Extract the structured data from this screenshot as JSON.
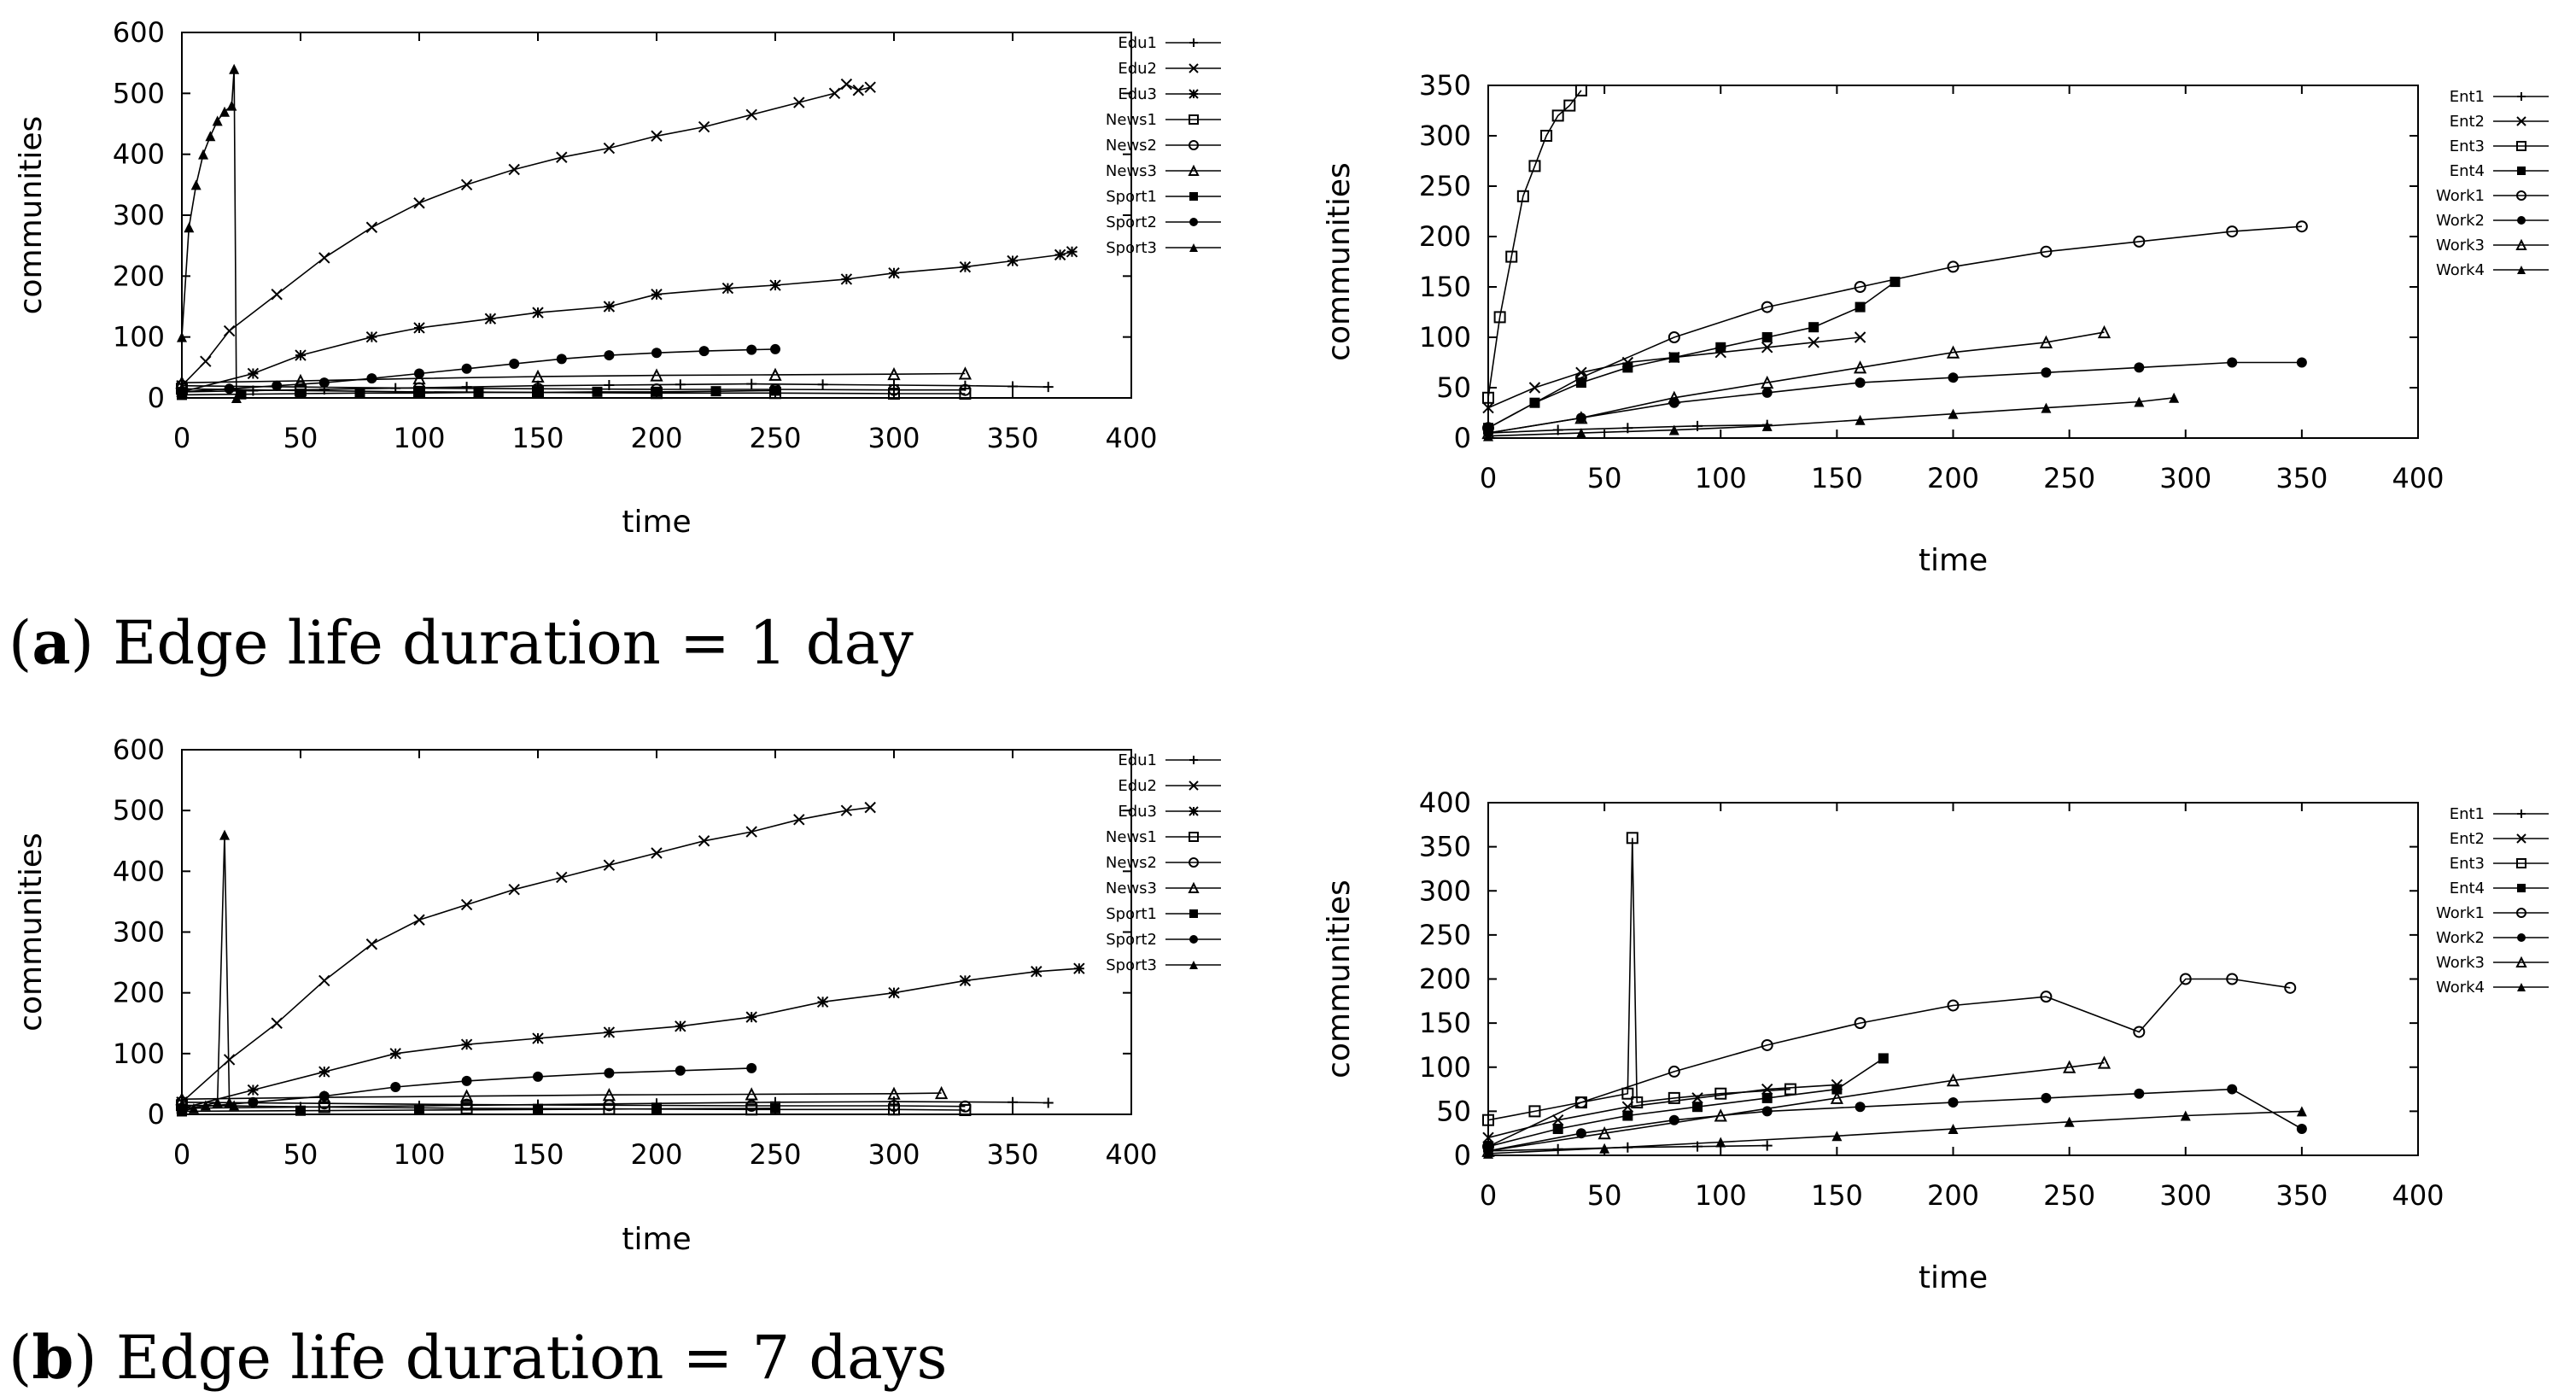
{
  "captions": [
    {
      "letter": "a",
      "text": "Edge life duration = 1 day"
    },
    {
      "letter": "b",
      "text": "Edge life duration = 7 days"
    }
  ],
  "chart_data": [
    {
      "id": "a-left",
      "type": "line",
      "title": "",
      "xlabel": "time",
      "ylabel": "communities",
      "xlim": [
        0,
        400
      ],
      "ylim": [
        0,
        600
      ],
      "xticks": [
        0,
        50,
        100,
        150,
        200,
        250,
        300,
        350,
        400
      ],
      "yticks": [
        0,
        100,
        200,
        300,
        400,
        500,
        600
      ],
      "legend_position": "right",
      "grid": false,
      "series": [
        {
          "name": "Edu1",
          "marker": "plus",
          "x": [
            0,
            30,
            60,
            90,
            120,
            150,
            180,
            210,
            240,
            270,
            300,
            330,
            350,
            365
          ],
          "y": [
            10,
            12,
            14,
            16,
            18,
            20,
            21,
            22,
            23,
            22,
            21,
            20,
            19,
            18
          ]
        },
        {
          "name": "Edu2",
          "marker": "x",
          "x": [
            0,
            10,
            20,
            40,
            60,
            80,
            100,
            120,
            140,
            160,
            180,
            200,
            220,
            240,
            260,
            275,
            280,
            285,
            290
          ],
          "y": [
            20,
            60,
            110,
            170,
            230,
            280,
            320,
            350,
            375,
            395,
            410,
            430,
            445,
            465,
            485,
            500,
            515,
            505,
            510
          ]
        },
        {
          "name": "Edu3",
          "marker": "asterisk",
          "x": [
            0,
            30,
            50,
            80,
            100,
            130,
            150,
            180,
            200,
            230,
            250,
            280,
            300,
            330,
            350,
            370,
            375
          ],
          "y": [
            10,
            40,
            70,
            100,
            115,
            130,
            140,
            150,
            170,
            180,
            185,
            195,
            205,
            215,
            225,
            235,
            240
          ]
        },
        {
          "name": "News1",
          "marker": "open-square",
          "x": [
            0,
            50,
            100,
            150,
            200,
            250,
            300,
            330
          ],
          "y": [
            15,
            12,
            10,
            9,
            8,
            8,
            7,
            7
          ]
        },
        {
          "name": "News2",
          "marker": "open-circle",
          "x": [
            0,
            50,
            100,
            150,
            200,
            250,
            300,
            330
          ],
          "y": [
            20,
            18,
            16,
            15,
            14,
            14,
            13,
            13
          ]
        },
        {
          "name": "News3",
          "marker": "open-triangle",
          "x": [
            0,
            50,
            100,
            150,
            200,
            250,
            300,
            330
          ],
          "y": [
            25,
            28,
            32,
            35,
            37,
            38,
            39,
            40
          ]
        },
        {
          "name": "Sport1",
          "marker": "filled-square",
          "x": [
            0,
            25,
            50,
            75,
            100,
            125,
            150,
            175,
            200,
            225,
            250
          ],
          "y": [
            5,
            6,
            7,
            8,
            8,
            9,
            9,
            10,
            10,
            11,
            12
          ]
        },
        {
          "name": "Sport2",
          "marker": "filled-circle",
          "x": [
            0,
            20,
            40,
            60,
            80,
            100,
            120,
            140,
            160,
            180,
            200,
            220,
            240,
            250
          ],
          "y": [
            10,
            15,
            20,
            25,
            32,
            40,
            48,
            56,
            64,
            70,
            74,
            77,
            79,
            80
          ]
        },
        {
          "name": "Sport3",
          "marker": "filled-triangle",
          "x": [
            0,
            3,
            6,
            9,
            12,
            15,
            18,
            21,
            22,
            23
          ],
          "y": [
            100,
            280,
            350,
            400,
            430,
            455,
            470,
            480,
            540,
            0
          ]
        }
      ]
    },
    {
      "id": "a-right",
      "type": "line",
      "title": "",
      "xlabel": "time",
      "ylabel": "communities",
      "xlim": [
        0,
        400
      ],
      "ylim": [
        0,
        350
      ],
      "xticks": [
        0,
        50,
        100,
        150,
        200,
        250,
        300,
        350,
        400
      ],
      "yticks": [
        0,
        50,
        100,
        150,
        200,
        250,
        300,
        350
      ],
      "legend_position": "right",
      "grid": false,
      "series": [
        {
          "name": "Ent1",
          "marker": "plus",
          "x": [
            0,
            30,
            60,
            90,
            120
          ],
          "y": [
            5,
            8,
            10,
            12,
            13
          ]
        },
        {
          "name": "Ent2",
          "marker": "x",
          "x": [
            0,
            20,
            40,
            60,
            80,
            100,
            120,
            140,
            160
          ],
          "y": [
            30,
            50,
            65,
            75,
            80,
            85,
            90,
            95,
            100
          ]
        },
        {
          "name": "Ent3",
          "marker": "open-square",
          "x": [
            0,
            5,
            10,
            15,
            20,
            25,
            30,
            35,
            40
          ],
          "y": [
            40,
            120,
            180,
            240,
            270,
            300,
            320,
            330,
            345
          ]
        },
        {
          "name": "Ent4",
          "marker": "filled-square",
          "x": [
            0,
            20,
            40,
            60,
            80,
            100,
            120,
            140,
            160,
            175
          ],
          "y": [
            10,
            35,
            55,
            70,
            80,
            90,
            100,
            110,
            130,
            155
          ]
        },
        {
          "name": "Work1",
          "marker": "open-circle",
          "x": [
            0,
            40,
            80,
            120,
            160,
            200,
            240,
            280,
            320,
            350
          ],
          "y": [
            10,
            60,
            100,
            130,
            150,
            170,
            185,
            195,
            205,
            210
          ]
        },
        {
          "name": "Work2",
          "marker": "filled-circle",
          "x": [
            0,
            40,
            80,
            120,
            160,
            200,
            240,
            280,
            320,
            350
          ],
          "y": [
            5,
            20,
            35,
            45,
            55,
            60,
            65,
            70,
            75,
            75
          ]
        },
        {
          "name": "Work3",
          "marker": "open-triangle",
          "x": [
            0,
            40,
            80,
            120,
            160,
            200,
            240,
            265
          ],
          "y": [
            5,
            20,
            40,
            55,
            70,
            85,
            95,
            105
          ]
        },
        {
          "name": "Work4",
          "marker": "filled-triangle",
          "x": [
            0,
            40,
            80,
            120,
            160,
            200,
            240,
            280,
            295
          ],
          "y": [
            2,
            5,
            8,
            12,
            18,
            24,
            30,
            36,
            40
          ]
        }
      ]
    },
    {
      "id": "b-left",
      "type": "line",
      "title": "",
      "xlabel": "time",
      "ylabel": "communities",
      "xlim": [
        0,
        400
      ],
      "ylim": [
        0,
        600
      ],
      "xticks": [
        0,
        50,
        100,
        150,
        200,
        250,
        300,
        350,
        400
      ],
      "yticks": [
        0,
        100,
        200,
        300,
        400,
        500,
        600
      ],
      "legend_position": "right",
      "grid": false,
      "series": [
        {
          "name": "Edu1",
          "marker": "plus",
          "x": [
            0,
            50,
            100,
            150,
            200,
            250,
            300,
            350,
            365
          ],
          "y": [
            10,
            12,
            14,
            16,
            18,
            20,
            21,
            20,
            19
          ]
        },
        {
          "name": "Edu2",
          "marker": "x",
          "x": [
            0,
            20,
            40,
            60,
            80,
            100,
            120,
            140,
            160,
            180,
            200,
            220,
            240,
            260,
            280,
            290
          ],
          "y": [
            20,
            90,
            150,
            220,
            280,
            320,
            345,
            370,
            390,
            410,
            430,
            450,
            465,
            485,
            500,
            505
          ]
        },
        {
          "name": "Edu3",
          "marker": "asterisk",
          "x": [
            0,
            30,
            60,
            90,
            120,
            150,
            180,
            210,
            240,
            270,
            300,
            330,
            360,
            378
          ],
          "y": [
            10,
            40,
            70,
            100,
            115,
            125,
            135,
            145,
            160,
            185,
            200,
            220,
            235,
            240
          ]
        },
        {
          "name": "News1",
          "marker": "open-square",
          "x": [
            0,
            60,
            120,
            180,
            240,
            300,
            330
          ],
          "y": [
            15,
            12,
            10,
            9,
            8,
            8,
            7
          ]
        },
        {
          "name": "News2",
          "marker": "open-circle",
          "x": [
            0,
            60,
            120,
            180,
            240,
            300,
            330
          ],
          "y": [
            20,
            18,
            16,
            15,
            14,
            14,
            13
          ]
        },
        {
          "name": "News3",
          "marker": "open-triangle",
          "x": [
            0,
            60,
            120,
            180,
            240,
            300,
            320
          ],
          "y": [
            25,
            28,
            30,
            32,
            33,
            34,
            35
          ]
        },
        {
          "name": "Sport1",
          "marker": "filled-square",
          "x": [
            0,
            50,
            100,
            150,
            200,
            250
          ],
          "y": [
            5,
            6,
            7,
            8,
            9,
            10
          ]
        },
        {
          "name": "Sport2",
          "marker": "filled-circle",
          "x": [
            0,
            30,
            60,
            90,
            120,
            150,
            180,
            210,
            240
          ],
          "y": [
            10,
            20,
            30,
            45,
            55,
            62,
            68,
            72,
            76
          ]
        },
        {
          "name": "Sport3",
          "marker": "filled-triangle",
          "x": [
            0,
            5,
            10,
            15,
            18,
            20,
            22
          ],
          "y": [
            5,
            10,
            15,
            20,
            460,
            20,
            15
          ]
        }
      ]
    },
    {
      "id": "b-right",
      "type": "line",
      "title": "",
      "xlabel": "time",
      "ylabel": "communities",
      "xlim": [
        0,
        400
      ],
      "ylim": [
        0,
        400
      ],
      "xticks": [
        0,
        50,
        100,
        150,
        200,
        250,
        300,
        350,
        400
      ],
      "yticks": [
        0,
        50,
        100,
        150,
        200,
        250,
        300,
        350,
        400
      ],
      "legend_position": "right",
      "grid": false,
      "series": [
        {
          "name": "Ent1",
          "marker": "plus",
          "x": [
            0,
            30,
            60,
            90,
            120
          ],
          "y": [
            5,
            7,
            9,
            10,
            11
          ]
        },
        {
          "name": "Ent2",
          "marker": "x",
          "x": [
            0,
            30,
            60,
            90,
            120,
            150
          ],
          "y": [
            20,
            40,
            55,
            65,
            75,
            80
          ]
        },
        {
          "name": "Ent3",
          "marker": "open-square",
          "x": [
            0,
            20,
            40,
            60,
            62,
            64,
            80,
            100,
            130
          ],
          "y": [
            40,
            50,
            60,
            70,
            360,
            60,
            65,
            70,
            75
          ]
        },
        {
          "name": "Ent4",
          "marker": "filled-square",
          "x": [
            0,
            30,
            60,
            90,
            120,
            150,
            170
          ],
          "y": [
            10,
            30,
            45,
            55,
            65,
            75,
            110
          ]
        },
        {
          "name": "Work1",
          "marker": "open-circle",
          "x": [
            0,
            40,
            80,
            120,
            160,
            200,
            240,
            280,
            300,
            320,
            345
          ],
          "y": [
            10,
            60,
            95,
            125,
            150,
            170,
            180,
            140,
            200,
            200,
            190
          ]
        },
        {
          "name": "Work2",
          "marker": "filled-circle",
          "x": [
            0,
            40,
            80,
            120,
            160,
            200,
            240,
            280,
            320,
            350
          ],
          "y": [
            5,
            25,
            40,
            50,
            55,
            60,
            65,
            70,
            75,
            30
          ]
        },
        {
          "name": "Work3",
          "marker": "open-triangle",
          "x": [
            0,
            50,
            100,
            150,
            200,
            250,
            265
          ],
          "y": [
            5,
            25,
            45,
            65,
            85,
            100,
            105
          ]
        },
        {
          "name": "Work4",
          "marker": "filled-triangle",
          "x": [
            0,
            50,
            100,
            150,
            200,
            250,
            300,
            350
          ],
          "y": [
            2,
            8,
            15,
            22,
            30,
            38,
            45,
            50
          ]
        }
      ]
    }
  ]
}
